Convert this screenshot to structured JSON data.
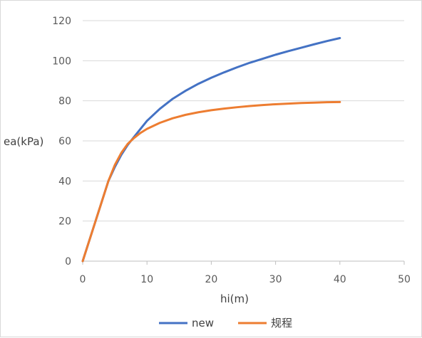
{
  "chart_data": {
    "type": "line",
    "title": "",
    "xlabel": "hi(m)",
    "ylabel": "ea(kPa)",
    "xlim": [
      0,
      50
    ],
    "ylim": [
      0,
      120
    ],
    "xticks": [
      0,
      10,
      20,
      30,
      40,
      50
    ],
    "yticks": [
      0,
      20,
      40,
      60,
      80,
      100,
      120
    ],
    "grid": "horizontal",
    "legend": "bottom",
    "series": [
      {
        "name": "new",
        "color": "#4472C4",
        "points": [
          [
            0,
            0
          ],
          [
            1,
            10
          ],
          [
            2,
            20
          ],
          [
            3,
            30
          ],
          [
            4,
            40
          ],
          [
            5,
            47
          ],
          [
            6,
            53
          ],
          [
            7,
            58
          ],
          [
            8,
            62
          ],
          [
            9,
            66
          ],
          [
            10,
            70
          ],
          [
            12,
            76
          ],
          [
            14,
            81
          ],
          [
            16,
            85
          ],
          [
            18,
            88.5
          ],
          [
            20,
            91.5
          ],
          [
            22,
            94.2
          ],
          [
            24,
            96.7
          ],
          [
            26,
            99
          ],
          [
            28,
            101
          ],
          [
            30,
            103
          ],
          [
            32,
            104.8
          ],
          [
            34,
            106.5
          ],
          [
            36,
            108.2
          ],
          [
            38,
            109.8
          ],
          [
            40,
            111.3
          ]
        ]
      },
      {
        "name": "规程",
        "color": "#ED7D31",
        "points": [
          [
            0,
            0
          ],
          [
            1,
            10
          ],
          [
            2,
            20
          ],
          [
            3,
            30
          ],
          [
            4,
            40
          ],
          [
            5,
            48
          ],
          [
            6,
            54
          ],
          [
            7,
            58.5
          ],
          [
            8,
            61.5
          ],
          [
            9,
            64
          ],
          [
            10,
            66
          ],
          [
            12,
            69
          ],
          [
            14,
            71.3
          ],
          [
            16,
            73
          ],
          [
            18,
            74.3
          ],
          [
            20,
            75.3
          ],
          [
            22,
            76.1
          ],
          [
            24,
            76.8
          ],
          [
            26,
            77.4
          ],
          [
            28,
            77.9
          ],
          [
            30,
            78.3
          ],
          [
            32,
            78.6
          ],
          [
            34,
            78.9
          ],
          [
            36,
            79.1
          ],
          [
            38,
            79.3
          ],
          [
            40,
            79.4
          ]
        ]
      }
    ]
  }
}
